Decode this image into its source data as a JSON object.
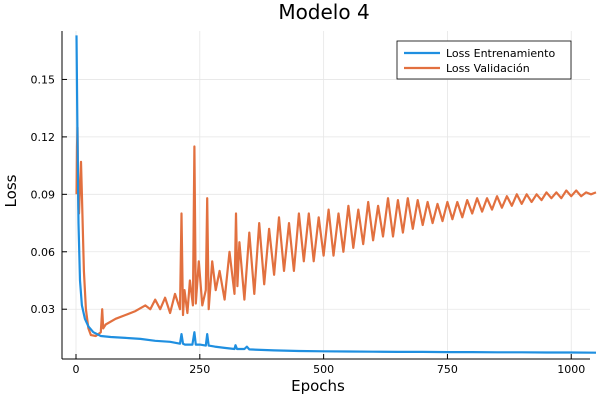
{
  "chart_data": {
    "type": "line",
    "title": "Modelo 4",
    "xlabel": "Epochs",
    "ylabel": "Loss",
    "xlim": [
      0,
      1050
    ],
    "ylim": [
      0.004,
      0.18
    ],
    "x_ticks": [
      0,
      250,
      500,
      750,
      1000
    ],
    "y_ticks": [
      0.03,
      0.06,
      0.09,
      0.12,
      0.15
    ],
    "y_tick_labels": [
      "0.03",
      "0.06",
      "0.09",
      "0.12",
      "0.15"
    ],
    "grid": true,
    "legend_position": "top-right",
    "series": [
      {
        "name": "Loss Entrenamiento",
        "color": "#1f8fe0",
        "x": [
          1,
          3,
          5,
          8,
          12,
          18,
          25,
          35,
          50,
          70,
          100,
          130,
          160,
          190,
          210,
          213,
          216,
          220,
          235,
          239,
          242,
          250,
          262,
          265,
          268,
          280,
          300,
          320,
          322,
          325,
          340,
          345,
          350,
          400,
          450,
          500,
          550,
          600,
          650,
          700,
          750,
          800,
          850,
          900,
          950,
          1000,
          1050
        ],
        "y": [
          0.173,
          0.12,
          0.075,
          0.045,
          0.032,
          0.025,
          0.021,
          0.018,
          0.016,
          0.0155,
          0.015,
          0.0145,
          0.0135,
          0.013,
          0.012,
          0.017,
          0.012,
          0.0115,
          0.0115,
          0.018,
          0.0115,
          0.0115,
          0.011,
          0.017,
          0.011,
          0.0105,
          0.0098,
          0.0092,
          0.0112,
          0.0092,
          0.0092,
          0.0104,
          0.009,
          0.0085,
          0.0082,
          0.008,
          0.0079,
          0.0078,
          0.0077,
          0.0077,
          0.0076,
          0.0076,
          0.0075,
          0.0075,
          0.0074,
          0.0074,
          0.0073
        ]
      },
      {
        "name": "Loss Validación",
        "color": "#e2703f",
        "x": [
          1,
          2,
          3,
          4,
          5,
          6,
          8,
          10,
          12,
          14,
          16,
          20,
          25,
          30,
          40,
          50,
          53,
          55,
          60,
          80,
          100,
          120,
          140,
          150,
          160,
          170,
          180,
          190,
          200,
          210,
          213,
          216,
          219,
          225,
          230,
          236,
          239,
          242,
          248,
          255,
          262,
          265,
          268,
          275,
          282,
          290,
          300,
          310,
          320,
          323,
          326,
          330,
          340,
          350,
          360,
          370,
          380,
          390,
          400,
          410,
          420,
          430,
          440,
          450,
          460,
          470,
          480,
          490,
          500,
          510,
          520,
          530,
          540,
          550,
          560,
          570,
          580,
          590,
          600,
          610,
          620,
          630,
          640,
          650,
          660,
          670,
          680,
          690,
          700,
          710,
          720,
          730,
          740,
          750,
          760,
          770,
          780,
          790,
          800,
          810,
          820,
          830,
          840,
          850,
          860,
          870,
          880,
          890,
          900,
          910,
          920,
          930,
          940,
          950,
          960,
          970,
          980,
          990,
          1000,
          1010,
          1020,
          1030,
          1040,
          1050
        ],
        "y": [
          0.09,
          0.115,
          0.125,
          0.095,
          0.082,
          0.08,
          0.095,
          0.107,
          0.09,
          0.07,
          0.05,
          0.03,
          0.02,
          0.0165,
          0.016,
          0.018,
          0.03,
          0.02,
          0.022,
          0.025,
          0.027,
          0.029,
          0.032,
          0.03,
          0.035,
          0.03,
          0.036,
          0.028,
          0.038,
          0.03,
          0.08,
          0.027,
          0.04,
          0.028,
          0.045,
          0.032,
          0.115,
          0.033,
          0.055,
          0.032,
          0.04,
          0.088,
          0.03,
          0.055,
          0.04,
          0.05,
          0.035,
          0.06,
          0.038,
          0.08,
          0.042,
          0.065,
          0.035,
          0.07,
          0.038,
          0.075,
          0.043,
          0.072,
          0.048,
          0.078,
          0.05,
          0.075,
          0.05,
          0.08,
          0.055,
          0.08,
          0.055,
          0.078,
          0.058,
          0.082,
          0.058,
          0.08,
          0.06,
          0.084,
          0.062,
          0.082,
          0.064,
          0.086,
          0.066,
          0.084,
          0.068,
          0.088,
          0.068,
          0.087,
          0.07,
          0.088,
          0.072,
          0.087,
          0.074,
          0.086,
          0.075,
          0.085,
          0.076,
          0.086,
          0.077,
          0.086,
          0.078,
          0.087,
          0.08,
          0.088,
          0.081,
          0.088,
          0.082,
          0.089,
          0.083,
          0.089,
          0.084,
          0.09,
          0.085,
          0.09,
          0.086,
          0.09,
          0.087,
          0.091,
          0.088,
          0.091,
          0.088,
          0.092,
          0.089,
          0.092,
          0.089,
          0.091,
          0.09,
          0.091
        ]
      }
    ]
  }
}
